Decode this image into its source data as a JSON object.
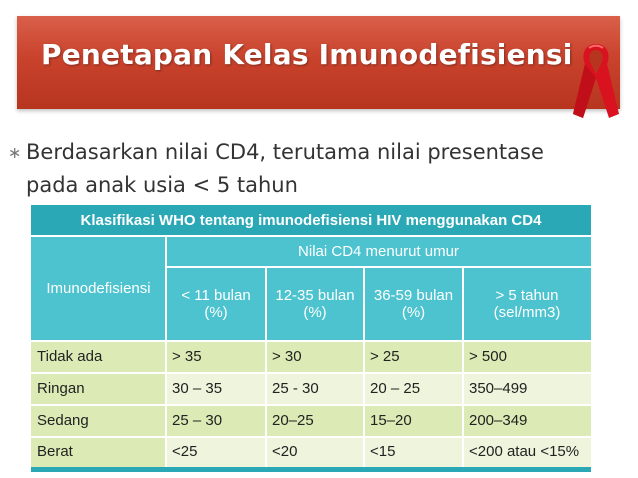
{
  "slide": {
    "title": "Penetapan Kelas Imunodefisiensi",
    "bullet": {
      "marker": "∗",
      "line1": "Berdasarkan nilai CD4, terutama nilai presentase",
      "line2": "pada anak usia < 5 tahun"
    },
    "ribbon_icon": "red-ribbon-icon",
    "colors": {
      "banner": "#c9422c",
      "table_header": "#2aa8b6",
      "table_subheader": "#4cc3cf",
      "row_dark": "#dcebb5",
      "row_light": "#eef5dc"
    }
  },
  "table": {
    "title": "Klasifikasi WHO tentang imunodefisiensi HIV menggunakan CD4",
    "group_header": "Nilai CD4 menurut umur",
    "row_header": "Imunodefisiensi",
    "columns": [
      {
        "line1": "< 11 bulan",
        "line2": "(%)"
      },
      {
        "line1": "12-35 bulan",
        "line2": "(%)"
      },
      {
        "line1": "36-59 bulan",
        "line2": "(%)"
      },
      {
        "line1": "> 5 tahun",
        "line2": "(sel/mm3)"
      }
    ],
    "rows": [
      {
        "label": "Tidak ada",
        "values": [
          "> 35",
          "> 30",
          "> 25",
          "> 500"
        ]
      },
      {
        "label": "Ringan",
        "values": [
          "30 – 35",
          "25 - 30",
          "20 – 25",
          "350–499"
        ]
      },
      {
        "label": "Sedang",
        "values": [
          "25 – 30",
          "20–25",
          "15–20",
          "200–349"
        ]
      },
      {
        "label": "Berat",
        "values": [
          "<25",
          "<20",
          "<15",
          "<200 atau <15%"
        ]
      }
    ]
  }
}
